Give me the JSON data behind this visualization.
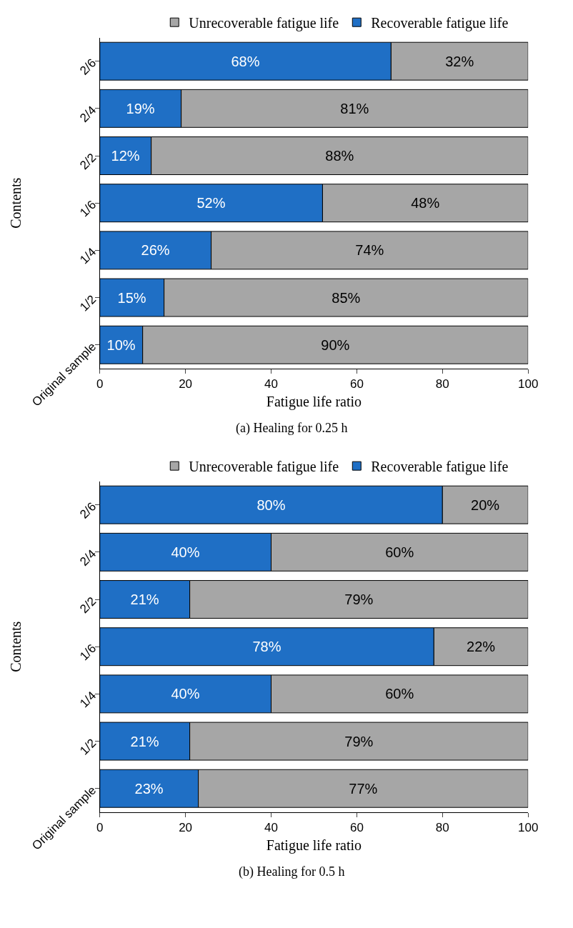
{
  "chart_data": [
    {
      "type": "bar",
      "orientation": "horizontal",
      "stacked": true,
      "title": "(a) Healing for 0.25 h",
      "xlabel": "Fatigue life ratio",
      "ylabel": "Contents",
      "categories": [
        "2/6",
        "2/4",
        "2/2",
        "1/6",
        "1/4",
        "1/2",
        "Original sample"
      ],
      "series": [
        {
          "name": "Recoverable fatigue life",
          "color": "#1f6fc5",
          "values": [
            68,
            19,
            12,
            52,
            26,
            15,
            10
          ],
          "value_labels": [
            "68%",
            "19%",
            "12%",
            "52%",
            "26%",
            "15%",
            "10%"
          ]
        },
        {
          "name": "Unrecoverable fatigue life",
          "color": "#a6a6a6",
          "values": [
            32,
            81,
            88,
            48,
            74,
            85,
            90
          ],
          "value_labels": [
            "32%",
            "81%",
            "88%",
            "48%",
            "74%",
            "85%",
            "90%"
          ]
        }
      ],
      "xlim": [
        0,
        100
      ],
      "xticks": [
        0,
        20,
        40,
        60,
        80,
        100
      ],
      "legend": "top"
    },
    {
      "type": "bar",
      "orientation": "horizontal",
      "stacked": true,
      "title": "(b) Healing for 0.5 h",
      "xlabel": "Fatigue life ratio",
      "ylabel": "Contents",
      "categories": [
        "2/6",
        "2/4",
        "2/2",
        "1/6",
        "1/4",
        "1/2",
        "Original sample"
      ],
      "series": [
        {
          "name": "Recoverable fatigue life",
          "color": "#1f6fc5",
          "values": [
            80,
            40,
            21,
            78,
            40,
            21,
            23
          ],
          "value_labels": [
            "80%",
            "40%",
            "21%",
            "78%",
            "40%",
            "21%",
            "23%"
          ]
        },
        {
          "name": "Unrecoverable fatigue life",
          "color": "#a6a6a6",
          "values": [
            20,
            60,
            79,
            22,
            60,
            79,
            77
          ],
          "value_labels": [
            "20%",
            "60%",
            "79%",
            "22%",
            "60%",
            "79%",
            "77%"
          ]
        }
      ],
      "xlim": [
        0,
        100
      ],
      "xticks": [
        0,
        20,
        40,
        60,
        80,
        100
      ],
      "legend": "top"
    }
  ]
}
